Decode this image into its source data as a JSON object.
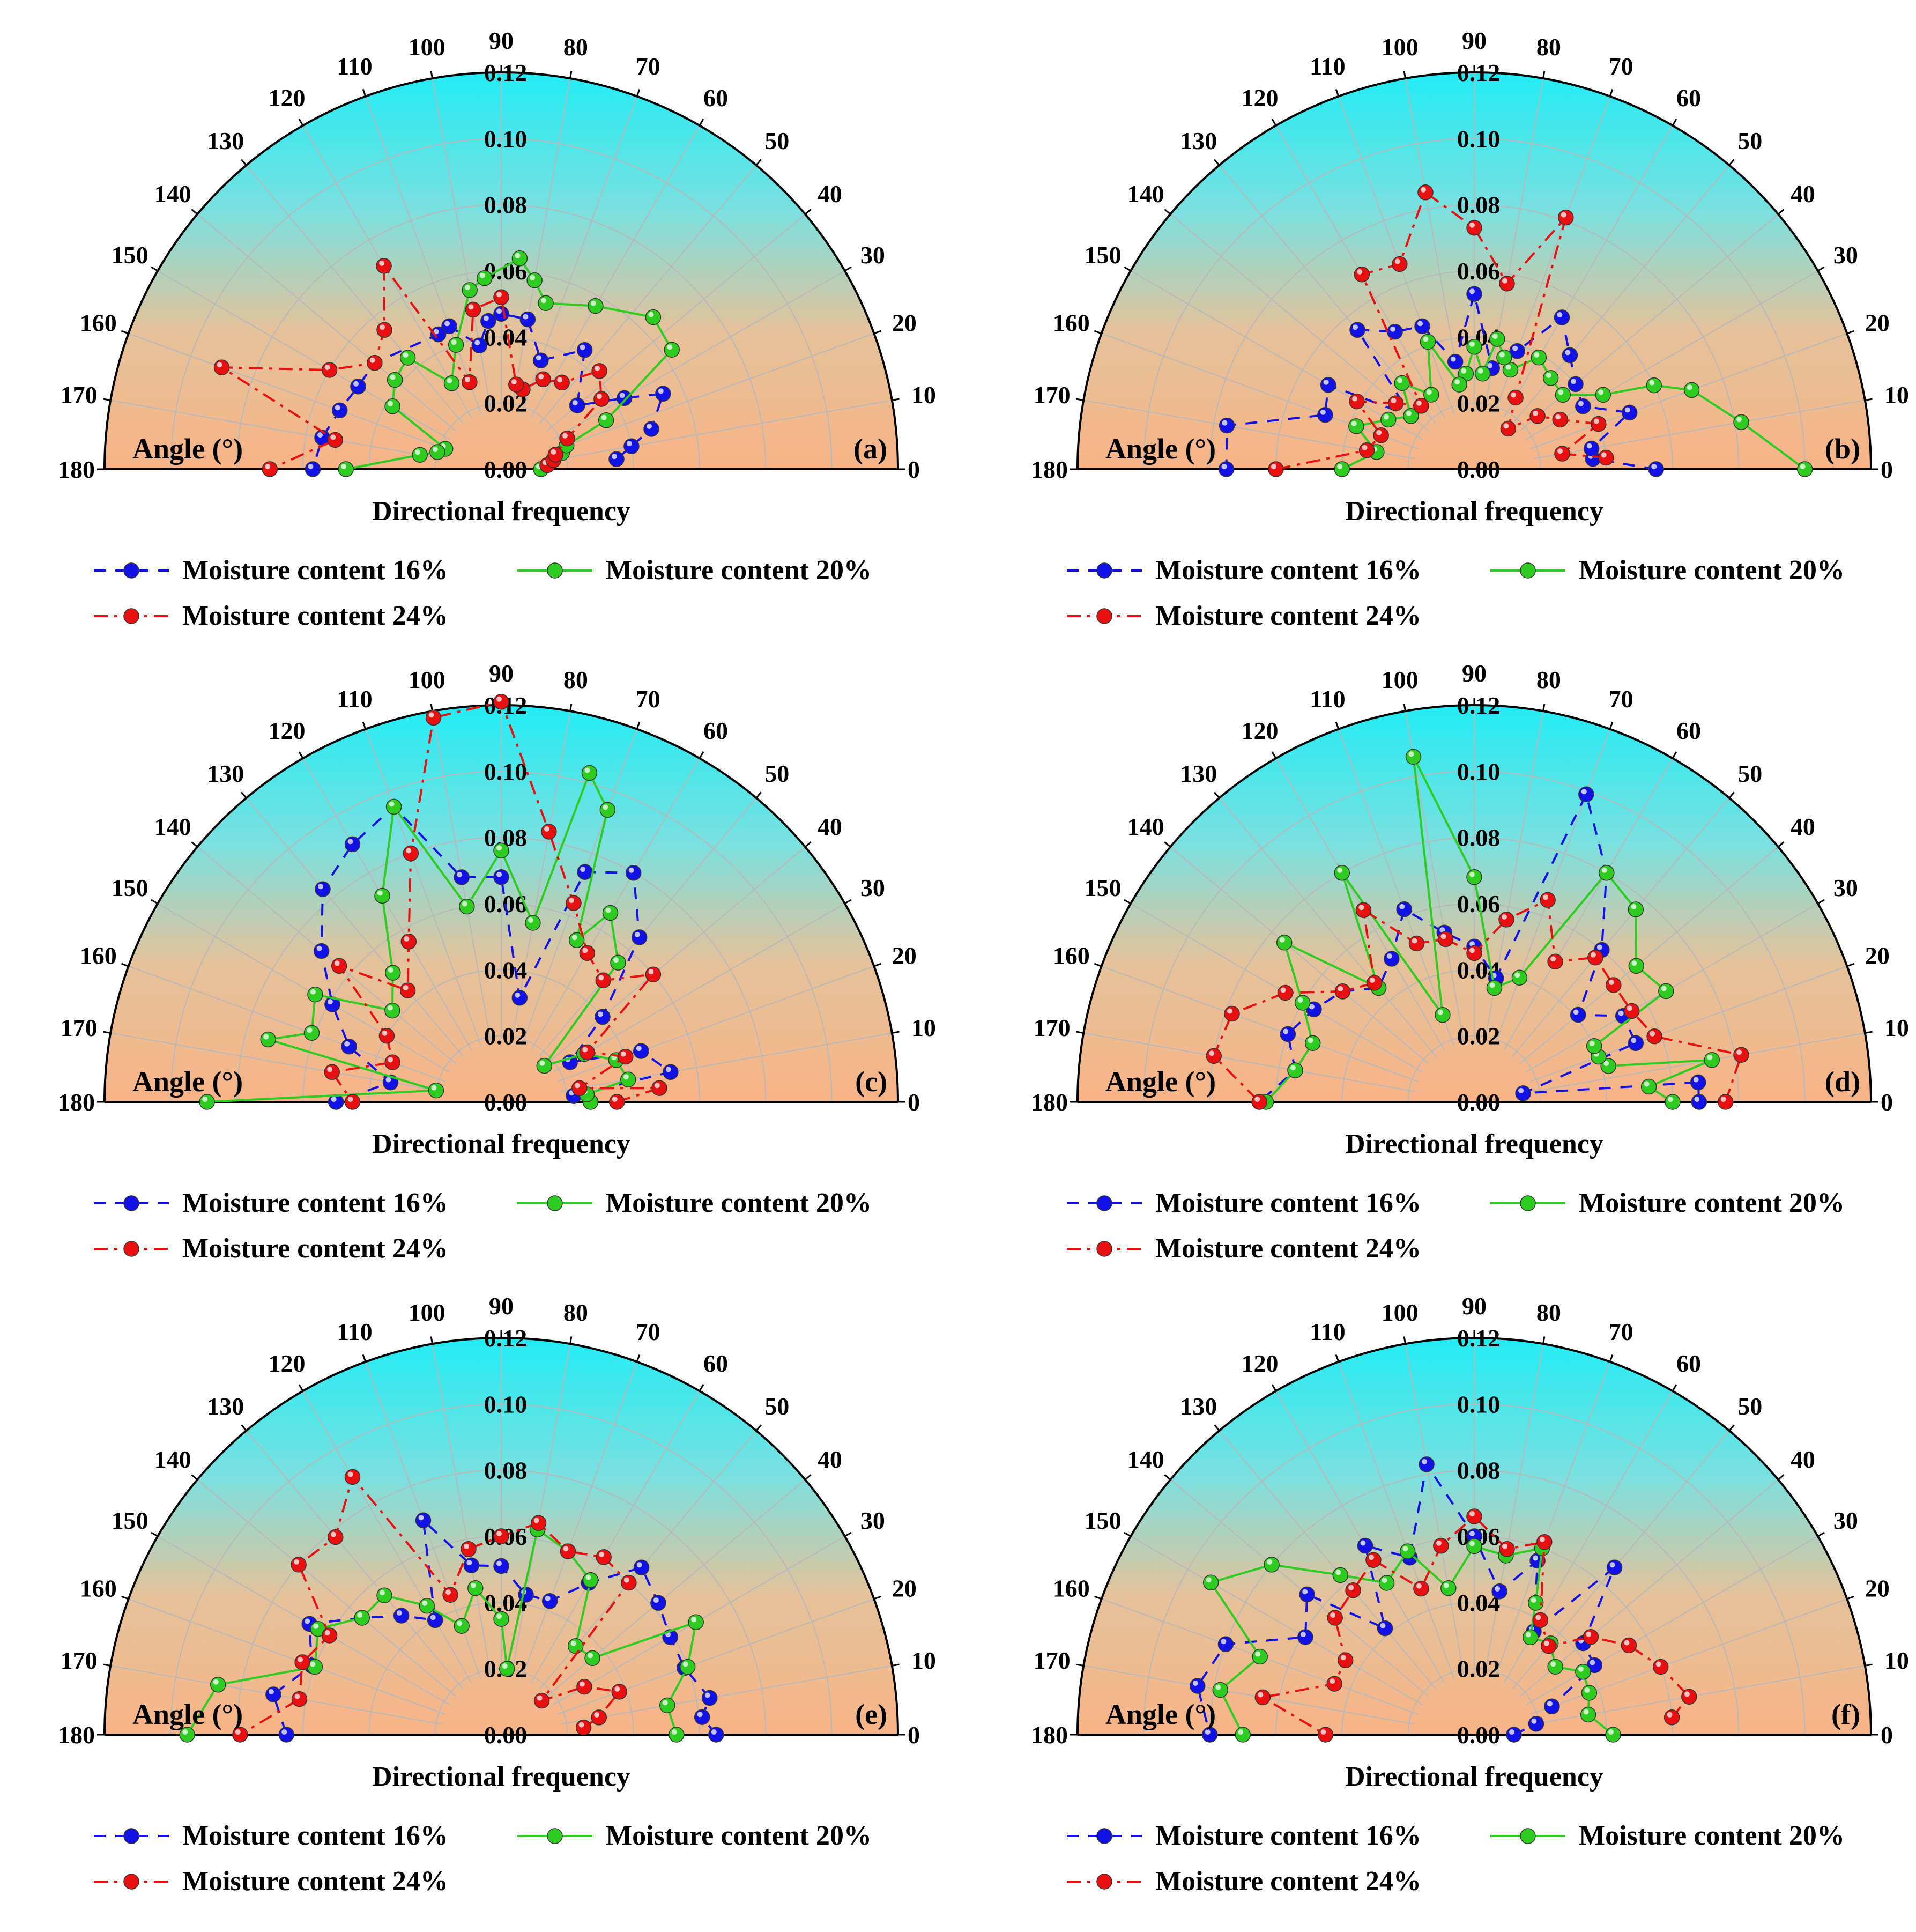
{
  "figure": {
    "common": {
      "xlabel": "Directional frequency",
      "angle_label": "Angle (°)",
      "radial_ticks": [
        "0.00",
        "0.02",
        "0.04",
        "0.06",
        "0.08",
        "0.10",
        "0.12"
      ],
      "angle_ticks": [
        "0",
        "10",
        "20",
        "30",
        "40",
        "50",
        "60",
        "70",
        "80",
        "90",
        "100",
        "110",
        "120",
        "130",
        "140",
        "150",
        "160",
        "170",
        "180"
      ],
      "legend": [
        "Moisture content 16%",
        "Moisture content 20%",
        "Moisture content 24%"
      ]
    },
    "colors": {
      "s16": "#1212e6",
      "s20": "#2ecc20",
      "s24": "#e81010",
      "gradient_top": "#22ecf4",
      "gradient_bottom": "#f7b487"
    },
    "panel_labels": [
      "(a)",
      "(b)",
      "(c)",
      "(d)",
      "(e)",
      "(f)"
    ]
  },
  "chart_data": [
    {
      "type": "polar-line",
      "label": "(a)",
      "theta_range": [
        0,
        180
      ],
      "r_range": [
        0,
        0.12
      ],
      "series": [
        {
          "name": "Moisture content 16%",
          "theta": [
            5,
            10,
            15,
            25,
            30,
            40,
            55,
            70,
            80,
            90,
            95,
            100,
            110,
            115,
            140,
            150,
            160,
            170,
            180
          ],
          "r": [
            0.035,
            0.04,
            0.047,
            0.054,
            0.043,
            0.03,
            0.044,
            0.035,
            0.046,
            0.047,
            0.045,
            0.038,
            0.046,
            0.045,
            0.05,
            0.05,
            0.052,
            0.055,
            0.057
          ]
        },
        {
          "name": "Moisture content 20%",
          "theta": [
            0,
            5,
            10,
            15,
            20,
            25,
            35,
            45,
            60,
            75,
            80,
            85,
            95,
            100,
            110,
            120,
            130,
            140,
            150,
            160,
            165,
            170,
            180
          ],
          "r": [
            0.012,
            0.014,
            0.016,
            0.019,
            0.021,
            0.035,
            0.063,
            0.065,
            0.057,
            0.052,
            0.058,
            0.064,
            0.058,
            0.055,
            0.04,
            0.03,
            0.044,
            0.042,
            0.038,
            0.018,
            0.02,
            0.025,
            0.047
          ]
        },
        {
          "name": "Moisture content 24%",
          "theta": [
            5,
            10,
            15,
            25,
            35,
            45,
            55,
            65,
            75,
            80,
            90,
            100,
            110,
            120,
            130,
            140,
            150,
            160,
            170,
            180
          ],
          "r": [
            0.014,
            0.016,
            0.017,
            0.022,
            0.037,
            0.042,
            0.032,
            0.03,
            0.025,
            0.026,
            0.052,
            0.049,
            0.028,
            0.071,
            0.055,
            0.05,
            0.06,
            0.09,
            0.051,
            0.07
          ]
        }
      ]
    },
    {
      "type": "polar-line",
      "label": "(b)",
      "theta_range": [
        0,
        180
      ],
      "r_range": [
        0,
        0.12
      ],
      "series": [
        {
          "name": "Moisture content 16%",
          "theta": [
            0,
            5,
            10,
            20,
            30,
            40,
            50,
            60,
            70,
            80,
            90,
            100,
            110,
            120,
            130,
            140,
            150,
            160,
            170,
            180
          ],
          "r": [
            0.055,
            0.036,
            0.036,
            0.05,
            0.038,
            0.04,
            0.045,
            0.053,
            0.038,
            0.031,
            0.053,
            0.033,
            0.046,
            0.048,
            0.055,
            0.025,
            0.051,
            0.048,
            0.076,
            0.075
          ]
        },
        {
          "name": "Moisture content 20%",
          "theta": [
            0,
            10,
            20,
            25,
            30,
            40,
            50,
            60,
            70,
            75,
            80,
            85,
            90,
            95,
            100,
            110,
            120,
            130,
            140,
            150,
            160,
            170,
            180
          ],
          "r": [
            0.1,
            0.082,
            0.07,
            0.06,
            0.045,
            0.035,
            0.036,
            0.039,
            0.032,
            0.035,
            0.04,
            0.029,
            0.037,
            0.029,
            0.026,
            0.041,
            0.026,
            0.034,
            0.025,
            0.03,
            0.038,
            0.03,
            0.04
          ]
        },
        {
          "name": "Moisture content 24%",
          "theta": [
            5,
            10,
            20,
            30,
            40,
            50,
            60,
            70,
            80,
            90,
            100,
            110,
            120,
            130,
            140,
            150,
            160,
            170,
            180
          ],
          "r": [
            0.04,
            0.027,
            0.04,
            0.03,
            0.025,
            0.016,
            0.025,
            0.081,
            0.057,
            0.073,
            0.085,
            0.066,
            0.068,
            0.025,
            0.031,
            0.041,
            0.03,
            0.033,
            0.06
          ]
        }
      ]
    },
    {
      "type": "polar-line",
      "label": "(c)",
      "theta_range": [
        0,
        180
      ],
      "r_range": [
        0,
        0.12
      ],
      "series": [
        {
          "name": "Moisture content 16%",
          "theta": [
            0,
            5,
            10,
            20,
            30,
            40,
            50,
            60,
            70,
            80,
            90,
            100,
            110,
            120,
            130,
            140,
            150,
            160,
            170,
            180
          ],
          "r": [
            0.027,
            0.022,
            0.052,
            0.045,
            0.024,
            0.04,
            0.065,
            0.08,
            0.074,
            0.032,
            0.068,
            0.069,
            0.095,
            0.09,
            0.084,
            0.071,
            0.059,
            0.049,
            0.034,
            0.05
          ]
        },
        {
          "name": "Moisture content 20%",
          "theta": [
            0,
            5,
            10,
            20,
            30,
            40,
            50,
            60,
            65,
            70,
            75,
            80,
            90,
            100,
            110,
            120,
            130,
            140,
            150,
            160,
            165,
            170,
            180
          ],
          "r": [
            0.027,
            0.026,
            0.039,
            0.037,
            0.029,
            0.017,
            0.055,
            0.066,
            0.054,
            0.094,
            0.103,
            0.055,
            0.076,
            0.06,
            0.095,
            0.072,
            0.051,
            0.043,
            0.065,
            0.061,
            0.073,
            0.02,
            0.089
          ]
        },
        {
          "name": "Moisture content 24%",
          "theta": [
            0,
            5,
            10,
            20,
            30,
            40,
            50,
            60,
            70,
            80,
            90,
            100,
            110,
            120,
            130,
            140,
            150,
            160,
            170,
            180
          ],
          "r": [
            0.035,
            0.048,
            0.024,
            0.04,
            0.03,
            0.06,
            0.048,
            0.052,
            0.064,
            0.083,
            0.121,
            0.118,
            0.08,
            0.056,
            0.044,
            0.064,
            0.04,
            0.035,
            0.052,
            0.045
          ]
        }
      ]
    },
    {
      "type": "polar-line",
      "label": "(d)",
      "theta_range": [
        0,
        180
      ],
      "r_range": [
        0,
        0.12
      ],
      "series": [
        {
          "name": "Moisture content 16%",
          "theta": [
            0,
            5,
            10,
            20,
            30,
            40,
            50,
            60,
            70,
            80,
            90,
            100,
            110,
            120,
            130,
            140,
            150,
            160,
            170,
            180
          ],
          "r": [
            0.068,
            0.068,
            0.015,
            0.052,
            0.052,
            0.041,
            0.06,
            0.08,
            0.099,
            0.038,
            0.047,
            0.052,
            0.062,
            0.05,
            0.045,
            0.052,
            0.056,
            0.06,
            0.055,
            0.065
          ]
        },
        {
          "name": "Moisture content 20%",
          "theta": [
            0,
            5,
            10,
            15,
            20,
            25,
            30,
            40,
            50,
            60,
            70,
            80,
            90,
            100,
            110,
            120,
            130,
            140,
            150,
            160,
            170,
            180
          ],
          "r": [
            0.06,
            0.053,
            0.073,
            0.042,
            0.04,
            0.04,
            0.067,
            0.064,
            0.076,
            0.08,
            0.04,
            0.035,
            0.068,
            0.106,
            0.028,
            0.08,
            0.045,
            0.075,
            0.06,
            0.052,
            0.055,
            0.063
          ]
        },
        {
          "name": "Moisture content 24%",
          "theta": [
            0,
            10,
            20,
            30,
            40,
            50,
            60,
            70,
            80,
            90,
            100,
            110,
            120,
            130,
            140,
            150,
            160,
            170,
            180
          ],
          "r": [
            0.076,
            0.082,
            0.058,
            0.055,
            0.055,
            0.057,
            0.049,
            0.065,
            0.056,
            0.045,
            0.05,
            0.051,
            0.067,
            0.047,
            0.052,
            0.066,
            0.078,
            0.08,
            0.065
          ]
        }
      ]
    },
    {
      "type": "polar-line",
      "label": "(e)",
      "theta_range": [
        0,
        180
      ],
      "r_range": [
        0,
        0.12
      ],
      "series": [
        {
          "name": "Moisture content 16%",
          "theta": [
            0,
            5,
            10,
            20,
            30,
            40,
            50,
            60,
            70,
            80,
            90,
            100,
            110,
            120,
            130,
            140,
            150,
            160,
            170,
            180
          ],
          "r": [
            0.065,
            0.061,
            0.064,
            0.059,
            0.059,
            0.062,
            0.066,
            0.053,
            0.043,
            0.043,
            0.051,
            0.052,
            0.069,
            0.04,
            0.047,
            0.055,
            0.067,
            0.061,
            0.07,
            0.065
          ]
        },
        {
          "name": "Moisture content 20%",
          "theta": [
            0,
            10,
            20,
            30,
            40,
            50,
            60,
            70,
            80,
            85,
            90,
            100,
            110,
            120,
            130,
            140,
            150,
            160,
            170,
            180
          ],
          "r": [
            0.053,
            0.051,
            0.06,
            0.068,
            0.036,
            0.035,
            0.054,
            0.059,
            0.063,
            0.02,
            0.035,
            0.045,
            0.035,
            0.045,
            0.055,
            0.055,
            0.064,
            0.06,
            0.087,
            0.095
          ]
        },
        {
          "name": "Moisture content 24%",
          "theta": [
            5,
            10,
            20,
            30,
            40,
            50,
            60,
            70,
            80,
            90,
            100,
            110,
            120,
            130,
            140,
            150,
            160,
            170,
            180
          ],
          "r": [
            0.025,
            0.03,
            0.038,
            0.029,
            0.016,
            0.06,
            0.062,
            0.059,
            0.065,
            0.06,
            0.057,
            0.045,
            0.09,
            0.078,
            0.08,
            0.06,
            0.064,
            0.062,
            0.079
          ]
        }
      ]
    },
    {
      "type": "polar-line",
      "label": "(f)",
      "theta_range": [
        0,
        180
      ],
      "r_range": [
        0,
        0.12
      ],
      "series": [
        {
          "name": "Moisture content 16%",
          "theta": [
            0,
            10,
            20,
            30,
            40,
            50,
            60,
            70,
            80,
            90,
            100,
            110,
            120,
            130,
            140,
            150,
            160,
            170,
            180
          ],
          "r": [
            0.012,
            0.019,
            0.025,
            0.042,
            0.043,
            0.066,
            0.036,
            0.056,
            0.044,
            0.06,
            0.083,
            0.057,
            0.066,
            0.042,
            0.066,
            0.059,
            0.08,
            0.085,
            0.08
          ]
        },
        {
          "name": "Moisture content 20%",
          "theta": [
            0,
            10,
            20,
            30,
            40,
            50,
            60,
            65,
            70,
            80,
            90,
            100,
            110,
            120,
            130,
            140,
            150,
            160,
            170,
            180
          ],
          "r": [
            0.042,
            0.035,
            0.037,
            0.038,
            0.032,
            0.036,
            0.034,
            0.044,
            0.06,
            0.055,
            0.057,
            0.045,
            0.059,
            0.053,
            0.063,
            0.08,
            0.092,
            0.069,
            0.078,
            0.07
          ]
        },
        {
          "name": "Moisture content 24%",
          "theta": [
            5,
            10,
            20,
            30,
            40,
            50,
            60,
            70,
            80,
            90,
            100,
            110,
            120,
            130,
            140,
            150,
            160,
            170,
            180
          ],
          "r": [
            0.06,
            0.066,
            0.06,
            0.054,
            0.046,
            0.035,
            0.04,
            0.062,
            0.057,
            0.066,
            0.058,
            0.047,
            0.061,
            0.057,
            0.055,
            0.045,
            0.045,
            0.065,
            0.045
          ]
        }
      ]
    }
  ]
}
